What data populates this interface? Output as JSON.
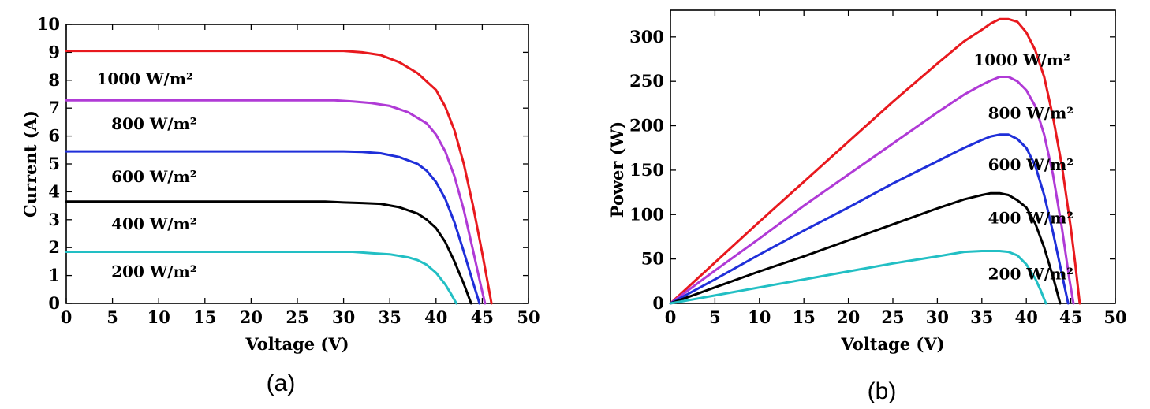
{
  "chart_data": [
    {
      "type": "line",
      "title": "",
      "xlabel": "Voltage (V)",
      "ylabel": "Current (A)",
      "xlim": [
        0,
        50
      ],
      "ylim": [
        0,
        10
      ],
      "xticks": [
        0,
        5,
        10,
        15,
        20,
        25,
        30,
        35,
        40,
        45,
        50
      ],
      "yticks": [
        0,
        1,
        2,
        3,
        4,
        5,
        6,
        7,
        8,
        9,
        10
      ],
      "panel_label": "(a)",
      "grid": false,
      "series": [
        {
          "name": "1000 W/m²",
          "color": "#e8191e",
          "x": [
            0,
            30,
            32,
            34,
            36,
            38,
            40,
            41,
            42,
            43,
            44,
            45,
            45.5,
            46
          ],
          "y": [
            9.05,
            9.05,
            9.0,
            8.9,
            8.65,
            8.25,
            7.65,
            7.05,
            6.2,
            5.0,
            3.5,
            1.8,
            0.9,
            0
          ]
        },
        {
          "name": "800 W/m²",
          "color": "#b03ad6",
          "x": [
            0,
            29,
            31,
            33,
            35,
            37,
            39,
            40,
            41,
            42,
            43,
            44,
            44.8,
            45.3
          ],
          "y": [
            7.28,
            7.28,
            7.24,
            7.18,
            7.08,
            6.85,
            6.45,
            6.05,
            5.45,
            4.55,
            3.35,
            1.9,
            0.7,
            0
          ]
        },
        {
          "name": "600 W/m²",
          "color": "#1f2fd9",
          "x": [
            0,
            30,
            32,
            34,
            36,
            38,
            39,
            40,
            41,
            42,
            43,
            44,
            44.7
          ],
          "y": [
            5.45,
            5.45,
            5.43,
            5.38,
            5.25,
            5.0,
            4.75,
            4.35,
            3.75,
            2.9,
            1.85,
            0.75,
            0
          ]
        },
        {
          "name": "400 W/m²",
          "color": "#000000",
          "x": [
            0,
            28,
            30,
            32,
            34,
            36,
            38,
            39,
            40,
            41,
            42,
            43,
            43.8
          ],
          "y": [
            3.65,
            3.65,
            3.62,
            3.6,
            3.57,
            3.45,
            3.22,
            3.0,
            2.7,
            2.2,
            1.5,
            0.7,
            0
          ]
        },
        {
          "name": "200 W/m²",
          "color": "#22bfc4",
          "x": [
            0,
            31,
            33,
            35,
            37,
            38,
            39,
            40,
            41,
            41.6,
            42.2
          ],
          "y": [
            1.85,
            1.85,
            1.8,
            1.76,
            1.65,
            1.55,
            1.38,
            1.1,
            0.68,
            0.35,
            0
          ]
        }
      ],
      "annotations": [
        {
          "text": "1000 W/m²",
          "x": 8.5,
          "y": 7.85
        },
        {
          "text": "800 W/m²",
          "x": 9.5,
          "y": 6.25
        },
        {
          "text": "600 W/m²",
          "x": 9.5,
          "y": 4.35
        },
        {
          "text": "400 W/m²",
          "x": 9.5,
          "y": 2.65
        },
        {
          "text": "200 W/m²",
          "x": 9.5,
          "y": 0.95
        }
      ]
    },
    {
      "type": "line",
      "title": "",
      "xlabel": "Voltage (V)",
      "ylabel": "Power (W)",
      "xlim": [
        0,
        50
      ],
      "ylim": [
        0,
        330
      ],
      "xticks": [
        0,
        5,
        10,
        15,
        20,
        25,
        30,
        35,
        40,
        45,
        50
      ],
      "yticks": [
        0,
        50,
        100,
        150,
        200,
        250,
        300
      ],
      "panel_label": "(b)",
      "grid": false,
      "series": [
        {
          "name": "1000 W/m²",
          "color": "#e8191e",
          "x": [
            0,
            5,
            10,
            15,
            20,
            25,
            30,
            33,
            35,
            36,
            37,
            38,
            39,
            40,
            41,
            42,
            43,
            44,
            45,
            45.5,
            46
          ],
          "y": [
            0,
            46,
            92,
            137,
            182,
            227,
            270,
            295,
            308,
            315,
            320,
            320,
            317,
            305,
            285,
            255,
            210,
            155,
            85,
            45,
            0
          ]
        },
        {
          "name": "800 W/m²",
          "color": "#b03ad6",
          "x": [
            0,
            5,
            10,
            15,
            20,
            25,
            30,
            33,
            35,
            36,
            37,
            38,
            39,
            40,
            41,
            42,
            43,
            44,
            44.8,
            45.3
          ],
          "y": [
            0,
            37,
            73,
            110,
            145,
            180,
            215,
            235,
            246,
            251,
            255,
            255,
            250,
            240,
            222,
            190,
            145,
            85,
            30,
            0
          ]
        },
        {
          "name": "600 W/m²",
          "color": "#1f2fd9",
          "x": [
            0,
            5,
            10,
            15,
            20,
            25,
            30,
            33,
            35,
            36,
            37,
            38,
            39,
            40,
            41,
            42,
            43,
            44,
            44.7
          ],
          "y": [
            0,
            27,
            55,
            82,
            108,
            135,
            160,
            175,
            184,
            188,
            190,
            190,
            185,
            175,
            155,
            122,
            80,
            33,
            0
          ]
        },
        {
          "name": "400 W/m²",
          "color": "#000000",
          "x": [
            0,
            5,
            10,
            15,
            20,
            25,
            30,
            33,
            35,
            36,
            37,
            38,
            39,
            40,
            41,
            42,
            43,
            43.8
          ],
          "y": [
            0,
            18,
            36,
            53,
            71,
            89,
            107,
            117,
            122,
            124,
            124,
            122,
            116,
            108,
            90,
            63,
            30,
            0
          ]
        },
        {
          "name": "200 W/m²",
          "color": "#22bfc4",
          "x": [
            0,
            5,
            10,
            15,
            20,
            25,
            30,
            33,
            35,
            37,
            38,
            39,
            40,
            41,
            41.6,
            42.2
          ],
          "y": [
            0,
            9,
            18,
            27,
            36,
            45,
            53,
            58,
            59,
            59,
            58,
            54,
            44,
            28,
            15,
            0
          ]
        }
      ],
      "annotations": [
        {
          "text": "1000 W/m²",
          "x": 39.5,
          "y": 268
        },
        {
          "text": "800 W/m²",
          "x": 40.5,
          "y": 208
        },
        {
          "text": "600 W/m²",
          "x": 40.5,
          "y": 150
        },
        {
          "text": "400 W/m²",
          "x": 40.5,
          "y": 90
        },
        {
          "text": "200 W/m²",
          "x": 40.5,
          "y": 27
        }
      ]
    }
  ]
}
